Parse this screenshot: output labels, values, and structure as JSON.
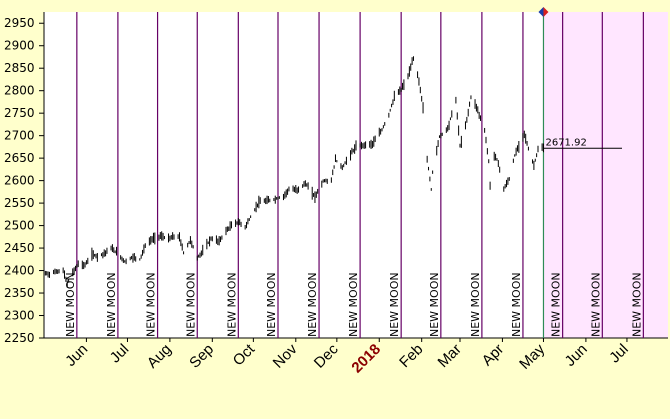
{
  "chart_data": {
    "type": "line",
    "title": "",
    "xlabel": "",
    "ylabel": "",
    "ylim": [
      2250,
      2975
    ],
    "y_ticks": [
      2250,
      2300,
      2350,
      2400,
      2450,
      2500,
      2550,
      2600,
      2650,
      2700,
      2750,
      2800,
      2850,
      2900,
      2950
    ],
    "x_range": [
      "2017-05-01",
      "2018-07-31"
    ],
    "x_ticks": [
      {
        "label": "Jun",
        "date": "2017-06-01"
      },
      {
        "label": "Jul",
        "date": "2017-07-01"
      },
      {
        "label": "Aug",
        "date": "2017-08-01"
      },
      {
        "label": "Sep",
        "date": "2017-09-01"
      },
      {
        "label": "Oct",
        "date": "2017-10-01"
      },
      {
        "label": "Nov",
        "date": "2017-11-01"
      },
      {
        "label": "Dec",
        "date": "2017-12-01"
      },
      {
        "label": "2018",
        "date": "2018-01-01",
        "year": true
      },
      {
        "label": "Feb",
        "date": "2018-02-01"
      },
      {
        "label": "Mar",
        "date": "2018-03-01"
      },
      {
        "label": "Apr",
        "date": "2018-04-01"
      },
      {
        "label": "May",
        "date": "2018-05-01"
      },
      {
        "label": "Jun",
        "date": "2018-06-01"
      },
      {
        "label": "Jul",
        "date": "2018-07-01"
      }
    ],
    "new_moon_label": "NEW MOON",
    "new_moons": [
      "2017-05-25",
      "2017-06-24",
      "2017-07-23",
      "2017-08-21",
      "2017-09-20",
      "2017-10-19",
      "2017-11-18",
      "2017-12-18",
      "2018-01-17",
      "2018-02-15",
      "2018-03-17",
      "2018-04-16",
      "2018-05-15",
      "2018-06-13",
      "2018-07-13"
    ],
    "current_date": "2018-05-01",
    "forecast_start": "2018-05-01",
    "last_price": 2671.92,
    "last_price_label": "2671.92",
    "series": [
      {
        "values": [
          [
            "2017-05-01",
            2395
          ],
          [
            "2017-05-05",
            2392
          ],
          [
            "2017-05-10",
            2398
          ],
          [
            "2017-05-15",
            2400
          ],
          [
            "2017-05-18",
            2370
          ],
          [
            "2017-05-22",
            2395
          ],
          [
            "2017-05-26",
            2415
          ],
          [
            "2017-05-31",
            2412
          ],
          [
            "2017-06-05",
            2436
          ],
          [
            "2017-06-09",
            2432
          ],
          [
            "2017-06-14",
            2438
          ],
          [
            "2017-06-19",
            2450
          ],
          [
            "2017-06-23",
            2440
          ],
          [
            "2017-06-29",
            2420
          ],
          [
            "2017-07-05",
            2430
          ],
          [
            "2017-07-10",
            2425
          ],
          [
            "2017-07-14",
            2455
          ],
          [
            "2017-07-19",
            2470
          ],
          [
            "2017-07-25",
            2477
          ],
          [
            "2017-07-31",
            2470
          ],
          [
            "2017-08-04",
            2476
          ],
          [
            "2017-08-08",
            2474
          ],
          [
            "2017-08-11",
            2440
          ],
          [
            "2017-08-16",
            2468
          ],
          [
            "2017-08-21",
            2428
          ],
          [
            "2017-08-25",
            2443
          ],
          [
            "2017-08-31",
            2471
          ],
          [
            "2017-09-06",
            2465
          ],
          [
            "2017-09-11",
            2488
          ],
          [
            "2017-09-15",
            2500
          ],
          [
            "2017-09-20",
            2508
          ],
          [
            "2017-09-25",
            2497
          ],
          [
            "2017-09-29",
            2519
          ],
          [
            "2017-10-05",
            2552
          ],
          [
            "2017-10-11",
            2555
          ],
          [
            "2017-10-17",
            2559
          ],
          [
            "2017-10-23",
            2565
          ],
          [
            "2017-10-27",
            2581
          ],
          [
            "2017-11-02",
            2579
          ],
          [
            "2017-11-08",
            2594
          ],
          [
            "2017-11-15",
            2564
          ],
          [
            "2017-11-21",
            2599
          ],
          [
            "2017-11-27",
            2601
          ],
          [
            "2017-11-30",
            2647
          ],
          [
            "2017-12-05",
            2629
          ],
          [
            "2017-12-11",
            2659
          ],
          [
            "2017-12-15",
            2675
          ],
          [
            "2017-12-20",
            2679
          ],
          [
            "2017-12-27",
            2682
          ],
          [
            "2018-01-03",
            2713
          ],
          [
            "2018-01-08",
            2747
          ],
          [
            "2018-01-12",
            2786
          ],
          [
            "2018-01-17",
            2802
          ],
          [
            "2018-01-22",
            2832
          ],
          [
            "2018-01-26",
            2872
          ],
          [
            "2018-01-30",
            2822
          ],
          [
            "2018-02-02",
            2762
          ],
          [
            "2018-02-05",
            2648
          ],
          [
            "2018-02-08",
            2581
          ],
          [
            "2018-02-09",
            2619
          ],
          [
            "2018-02-14",
            2698
          ],
          [
            "2018-02-20",
            2716
          ],
          [
            "2018-02-26",
            2779
          ],
          [
            "2018-03-01",
            2677
          ],
          [
            "2018-03-05",
            2720
          ],
          [
            "2018-03-09",
            2786
          ],
          [
            "2018-03-13",
            2765
          ],
          [
            "2018-03-19",
            2712
          ],
          [
            "2018-03-22",
            2643
          ],
          [
            "2018-03-23",
            2588
          ],
          [
            "2018-03-26",
            2658
          ],
          [
            "2018-03-29",
            2640
          ],
          [
            "2018-04-02",
            2581
          ],
          [
            "2018-04-06",
            2604
          ],
          [
            "2018-04-10",
            2656
          ],
          [
            "2018-04-17",
            2706
          ],
          [
            "2018-04-20",
            2670
          ],
          [
            "2018-04-24",
            2634
          ],
          [
            "2018-04-27",
            2669
          ],
          [
            "2018-05-01",
            2672
          ]
        ]
      }
    ]
  }
}
